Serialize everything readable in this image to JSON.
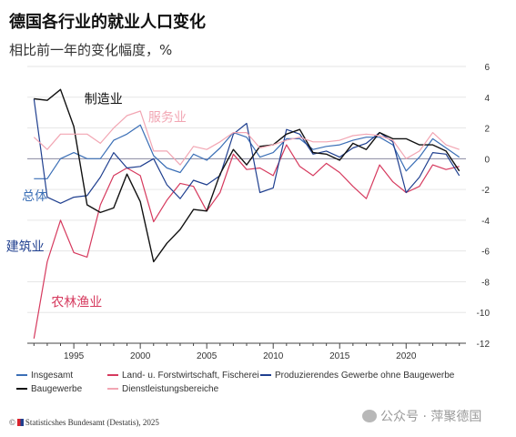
{
  "header": {
    "title": "德国各行业的就业人口变化",
    "subtitle": "相比前一年的变化幅度，%"
  },
  "chart_data": {
    "type": "line",
    "x": [
      1992,
      1993,
      1994,
      1995,
      1996,
      1997,
      1998,
      1999,
      2000,
      2001,
      2002,
      2003,
      2004,
      2005,
      2006,
      2007,
      2008,
      2009,
      2010,
      2011,
      2012,
      2013,
      2014,
      2015,
      2016,
      2017,
      2018,
      2019,
      2020,
      2021,
      2022,
      2023,
      2024
    ],
    "xticks": [
      1995,
      2000,
      2005,
      2010,
      2015,
      2020
    ],
    "ylim": [
      -12,
      6
    ],
    "yticks": [
      6,
      4,
      2,
      0,
      -2,
      -4,
      -6,
      -8,
      -10,
      -12
    ],
    "grid": "horizontal",
    "legend_position": "bottom",
    "series": [
      {
        "name": "Insgesamt",
        "color": "#3b6fb6",
        "values": [
          -1.3,
          -1.3,
          0.0,
          0.4,
          0.0,
          0.0,
          1.2,
          1.6,
          2.2,
          0.2,
          -0.6,
          -0.9,
          0.3,
          -0.1,
          0.7,
          1.7,
          1.4,
          0.1,
          0.4,
          1.3,
          1.3,
          0.6,
          0.8,
          0.9,
          1.2,
          1.4,
          1.4,
          0.9,
          -0.8,
          0.1,
          1.3,
          0.7,
          0.1
        ]
      },
      {
        "name": "Land- u. Forstwirtschaft, Fischerei",
        "color": "#d63a5e",
        "values": [
          -11.7,
          -6.7,
          -4.0,
          -6.1,
          -6.4,
          -3.0,
          -1.1,
          -0.6,
          -1.1,
          -4.1,
          -2.7,
          -1.6,
          -1.8,
          -3.4,
          -2.2,
          0.3,
          -0.7,
          -0.6,
          -1.1,
          0.9,
          -0.5,
          -1.1,
          -0.3,
          -0.9,
          -1.8,
          -2.6,
          -0.4,
          -1.5,
          -2.2,
          -1.8,
          -0.4,
          -0.7,
          -0.5
        ]
      },
      {
        "name": "Produzierendes Gewerbe ohne Baugewerbe",
        "color": "#1f3f8f",
        "values": [
          3.9,
          -2.5,
          -2.9,
          -2.5,
          -2.4,
          -1.2,
          0.4,
          -0.6,
          -0.5,
          0.0,
          -1.7,
          -2.6,
          -1.4,
          -1.7,
          -1.1,
          1.6,
          2.3,
          -2.2,
          -1.9,
          1.9,
          1.6,
          0.3,
          0.5,
          0.1,
          0.7,
          1.0,
          1.7,
          1.1,
          -2.2,
          -1.2,
          0.4,
          0.3,
          -1.1
        ]
      },
      {
        "name": "Baugewerbe",
        "color": "#111111",
        "values": [
          3.9,
          3.8,
          4.5,
          2.1,
          -3.0,
          -3.5,
          -3.2,
          -1.0,
          -2.8,
          -6.7,
          -5.5,
          -4.6,
          -3.3,
          -3.4,
          -1.0,
          0.6,
          -0.4,
          0.8,
          0.9,
          1.6,
          1.9,
          0.4,
          0.3,
          -0.1,
          1.0,
          0.6,
          1.7,
          1.3,
          1.3,
          0.9,
          0.9,
          0.5,
          -0.8
        ]
      },
      {
        "name": "Dienstleistungsbereiche",
        "color": "#f2a6b3",
        "values": [
          1.4,
          0.6,
          1.6,
          1.6,
          1.6,
          1.0,
          2.0,
          2.8,
          3.1,
          0.5,
          0.5,
          -0.4,
          0.8,
          0.6,
          1.1,
          1.7,
          1.7,
          0.7,
          0.9,
          1.2,
          1.4,
          1.1,
          1.1,
          1.2,
          1.5,
          1.6,
          1.5,
          1.2,
          0.0,
          0.5,
          1.7,
          0.9,
          0.6
        ]
      }
    ],
    "annotations": [
      {
        "text": "制造业",
        "year": 1995.8,
        "value": 3.9,
        "color": "#111111"
      },
      {
        "text": "服务业",
        "year": 2000.6,
        "value": 2.7,
        "color": "#f2a6b3"
      },
      {
        "text": "总体",
        "year": 1991.1,
        "value": -2.4,
        "color": "#3b6fb6"
      },
      {
        "text": "建筑业",
        "year": 1989.9,
        "value": -5.7,
        "color": "#1f3f8f"
      },
      {
        "text": "农林渔业",
        "year": 1993.3,
        "value": -9.3,
        "color": "#d63a5e"
      }
    ]
  },
  "source": {
    "copyright": "©",
    "text": "Statisticshes Bundesamt (Destatis), 2025"
  },
  "watermark": {
    "text": "公众号 · 萍聚德国"
  }
}
